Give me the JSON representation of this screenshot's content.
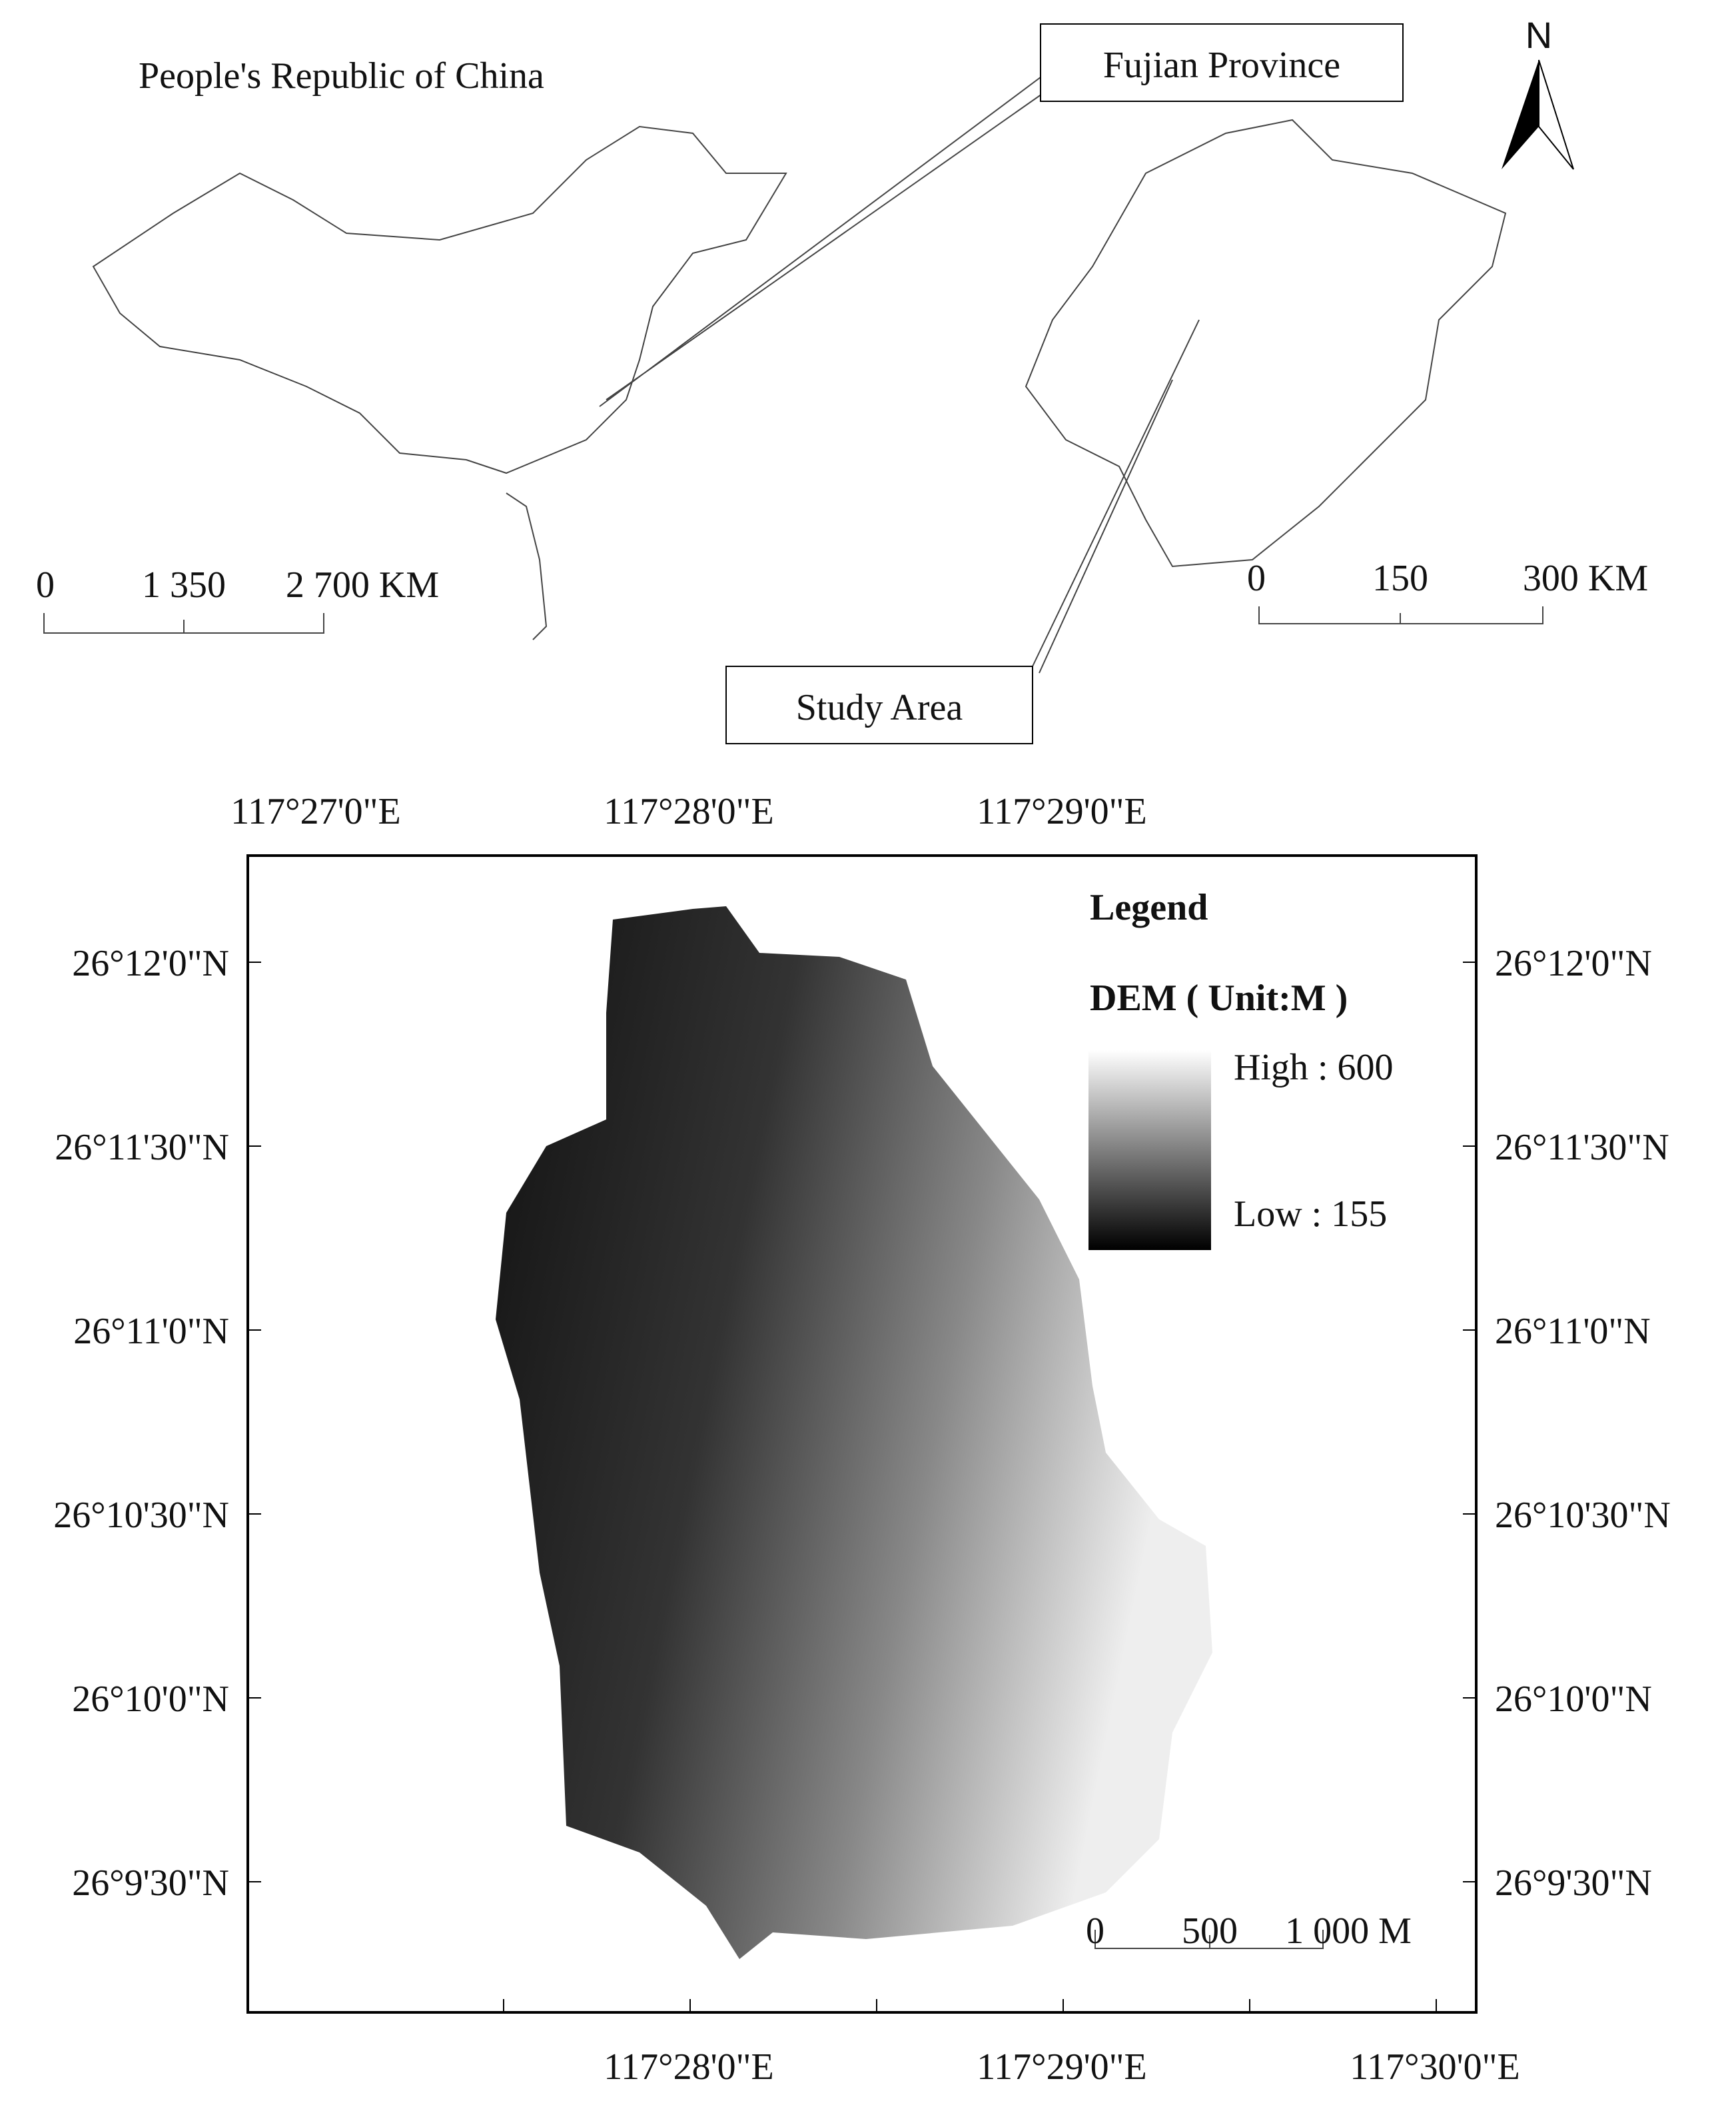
{
  "inset": {
    "china_title": "People's Republic of China",
    "china_scale": [
      "0",
      "1 350",
      "2 700 KM"
    ],
    "fujian_label": "Fujian Province",
    "fujian_scale": [
      "0",
      "150",
      "300 KM"
    ],
    "study_area_label": "Study Area",
    "north": "N"
  },
  "map": {
    "top_labels": [
      "117°27'0\"E",
      "117°28'0\"E",
      "117°29'0\"E"
    ],
    "bottom_labels": [
      "117°28'0\"E",
      "117°29'0\"E",
      "117°30'0\"E"
    ],
    "left_labels": [
      "26°12'0\"N",
      "26°11'30\"N",
      "26°11'0\"N",
      "26°10'30\"N",
      "26°10'0\"N",
      "26°9'30\"N"
    ],
    "right_labels": [
      "26°12'0\"N",
      "26°11'30\"N",
      "26°11'0\"N",
      "26°10'30\"N",
      "26°10'0\"N",
      "26°9'30\"N"
    ],
    "legend": {
      "title": "Legend",
      "subtitle": "DEM ( Unit:M )",
      "high": "High : 600",
      "low": "Low : 155"
    },
    "scale": [
      "0",
      "500",
      "1 000 M"
    ]
  }
}
